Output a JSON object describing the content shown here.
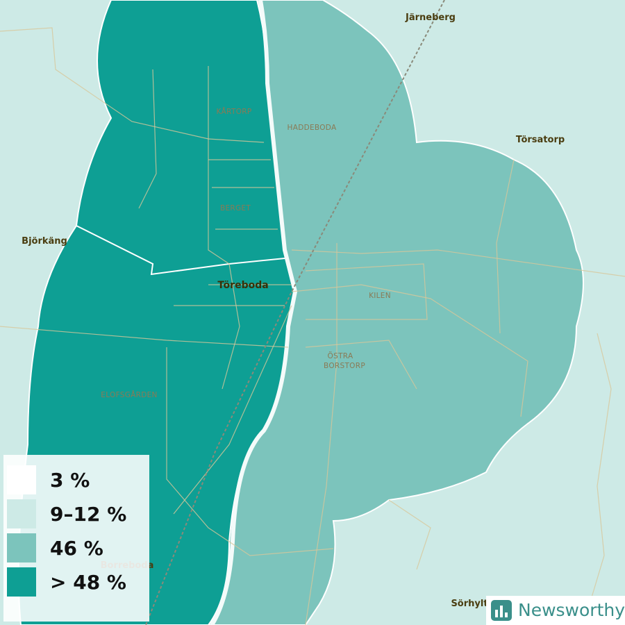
{
  "labels": [
    {
      "text": "Järneberg",
      "kind": "place"
    },
    {
      "text": "Törsatorp",
      "kind": "place"
    },
    {
      "text": "Björkäng",
      "kind": "place"
    },
    {
      "text": "Töreboda",
      "kind": "town"
    },
    {
      "text": "KÅRTORP",
      "kind": "hood"
    },
    {
      "text": "HADDEBODA",
      "kind": "hood"
    },
    {
      "text": "BERGET",
      "kind": "hood"
    },
    {
      "text": "KILEN",
      "kind": "hood"
    },
    {
      "text": "ÖSTRA",
      "kind": "hood"
    },
    {
      "text": "BORSTORP",
      "kind": "hood"
    },
    {
      "text": "ELOFSGÅRDEN",
      "kind": "hood"
    },
    {
      "text": "Borreboda",
      "kind": "place"
    },
    {
      "text": "Sörhylt",
      "kind": "place"
    }
  ],
  "legend": [
    {
      "label": "3 %",
      "color": "#ffffff"
    },
    {
      "label": "9–12 %",
      "color": "#cdeae6"
    },
    {
      "label": "46 %",
      "color": "#7cc4bc"
    },
    {
      "label": "> 48 %",
      "color": "#0e9f94"
    }
  ],
  "brand": "Newsworthy"
}
